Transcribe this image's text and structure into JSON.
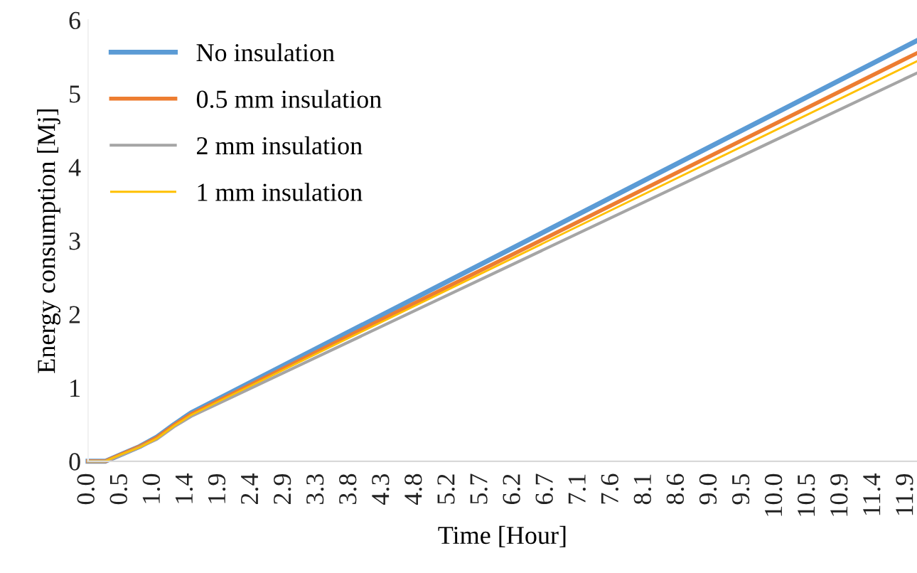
{
  "chart_data": {
    "type": "line",
    "xlabel": "Time [Hour]",
    "ylabel": "Energy consumption [Mj]",
    "x": [
      0,
      0.25,
      0.5,
      0.75,
      1.0,
      1.25,
      1.5,
      2.0,
      12.05
    ],
    "series": [
      {
        "name": "No insulation",
        "color": "#5b9bd5",
        "values": [
          0,
          0,
          0.1,
          0.2,
          0.33,
          0.5,
          0.66,
          0.9,
          5.72
        ]
      },
      {
        "name": "0.5 mm insulation",
        "color": "#ed7d31",
        "values": [
          0,
          0,
          0.1,
          0.2,
          0.32,
          0.49,
          0.64,
          0.87,
          5.55
        ]
      },
      {
        "name": "2 mm insulation",
        "color": "#a5a5a5",
        "values": [
          0,
          0,
          0.09,
          0.19,
          0.3,
          0.47,
          0.61,
          0.83,
          5.28
        ]
      },
      {
        "name": "1 mm insulation",
        "color": "#ffc000",
        "values": [
          0,
          0,
          0.1,
          0.19,
          0.31,
          0.48,
          0.63,
          0.86,
          5.44
        ]
      }
    ],
    "xlim": [
      0,
      12.05
    ],
    "xticks": [
      {
        "value": 0,
        "label": "0.0"
      },
      {
        "value": 0.476,
        "label": "0.5"
      },
      {
        "value": 0.952,
        "label": "1.0"
      },
      {
        "value": 1.428,
        "label": "1.4"
      },
      {
        "value": 1.904,
        "label": "1.9"
      },
      {
        "value": 2.38,
        "label": "2.4"
      },
      {
        "value": 2.856,
        "label": "2.9"
      },
      {
        "value": 3.332,
        "label": "3.3"
      },
      {
        "value": 3.808,
        "label": "3.8"
      },
      {
        "value": 4.284,
        "label": "4.3"
      },
      {
        "value": 4.76,
        "label": "4.8"
      },
      {
        "value": 5.236,
        "label": "5.2"
      },
      {
        "value": 5.712,
        "label": "5.7"
      },
      {
        "value": 6.188,
        "label": "6.2"
      },
      {
        "value": 6.664,
        "label": "6.7"
      },
      {
        "value": 7.14,
        "label": "7.1"
      },
      {
        "value": 7.616,
        "label": "7.6"
      },
      {
        "value": 8.092,
        "label": "8.1"
      },
      {
        "value": 8.568,
        "label": "8.6"
      },
      {
        "value": 9.044,
        "label": "9.0"
      },
      {
        "value": 9.52,
        "label": "9.5"
      },
      {
        "value": 9.996,
        "label": "10.0"
      },
      {
        "value": 10.472,
        "label": "10.5"
      },
      {
        "value": 10.948,
        "label": "10.9"
      },
      {
        "value": 11.424,
        "label": "11.4"
      },
      {
        "value": 11.9,
        "label": "11.9"
      }
    ],
    "ylim": [
      0,
      6
    ],
    "yticks": [
      0,
      1,
      2,
      3,
      4,
      5,
      6
    ],
    "grid": false,
    "legend": "top left",
    "marker": "none",
    "line_style": "solid"
  }
}
